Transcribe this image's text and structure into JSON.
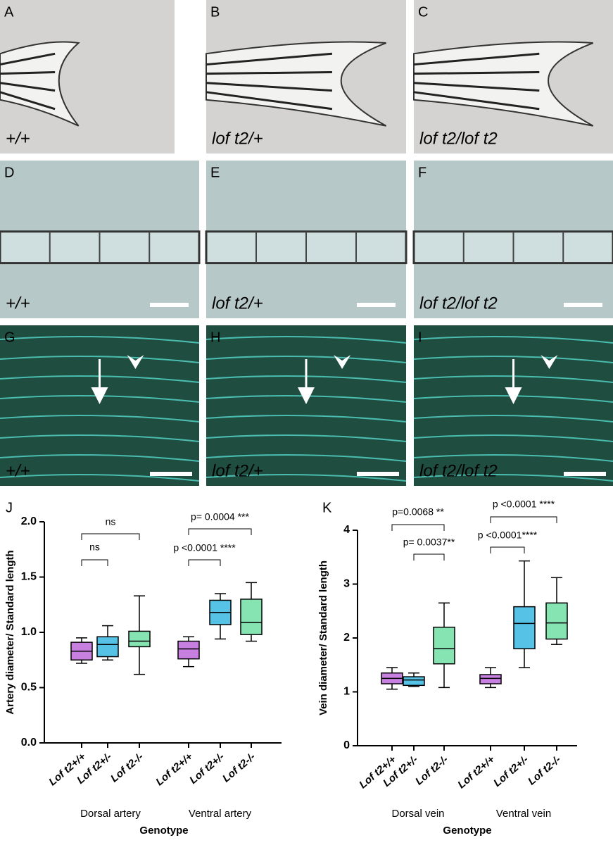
{
  "panels": [
    {
      "letter": "A",
      "genotype": "+/+"
    },
    {
      "letter": "B",
      "genotype": "lof t2/+"
    },
    {
      "letter": "C",
      "genotype": "lof t2/lof t2"
    },
    {
      "letter": "D",
      "genotype": "+/+"
    },
    {
      "letter": "E",
      "genotype": "lof t2/+"
    },
    {
      "letter": "F",
      "genotype": "lof t2/lof t2"
    },
    {
      "letter": "G",
      "genotype": "+/+"
    },
    {
      "letter": "H",
      "genotype": "lof t2/+"
    },
    {
      "letter": "I",
      "genotype": "lof t2/lof t2"
    }
  ],
  "chart_data": [
    {
      "type": "box",
      "panel_label": "J",
      "ylabel": "Artery diameter/ Standard length",
      "xlabel": "Genotype",
      "groups": [
        "Dorsal artery",
        "Ventral artery"
      ],
      "categories": [
        "Lof t2+/+",
        "Lof t2+/-",
        "Lof t2-/-",
        "Lof t2+/+",
        "Lof t2+/-",
        "Lof t2-/-"
      ],
      "colors": [
        "#c77fe0",
        "#56c2e6",
        "#86e3b2",
        "#c77fe0",
        "#56c2e6",
        "#86e3b2"
      ],
      "boxes": [
        {
          "min": 0.72,
          "q1": 0.75,
          "median": 0.83,
          "q3": 0.91,
          "max": 0.95
        },
        {
          "min": 0.75,
          "q1": 0.78,
          "median": 0.89,
          "q3": 0.96,
          "max": 1.06
        },
        {
          "min": 0.62,
          "q1": 0.87,
          "median": 0.92,
          "q3": 1.01,
          "max": 1.33
        },
        {
          "min": 0.69,
          "q1": 0.76,
          "median": 0.85,
          "q3": 0.92,
          "max": 0.96
        },
        {
          "min": 0.94,
          "q1": 1.07,
          "median": 1.18,
          "q3": 1.29,
          "max": 1.35
        },
        {
          "min": 0.92,
          "q1": 0.98,
          "median": 1.09,
          "q3": 1.3,
          "max": 1.45
        }
      ],
      "ylim": [
        0,
        2
      ],
      "yticks": [
        {
          "value": 0,
          "label": "0.0"
        },
        0.5,
        {
          "value": 1,
          "label": "1.0"
        },
        1.5,
        {
          "value": 2,
          "label": "2.0"
        }
      ],
      "annotations": [
        "ns",
        "ns",
        "p= 0.0004 ***",
        "p <0.0001 ****"
      ]
    },
    {
      "type": "box",
      "panel_label": "K",
      "ylabel": "Vein diameter/ Standard length",
      "xlabel": "Genotype",
      "groups": [
        "Dorsal vein",
        "Ventral vein"
      ],
      "categories": [
        "Lof t2+/+",
        "Lof t2+/-",
        "Lof t2-/-",
        "Lof t2+/+",
        "Lof t2+/-",
        "Lof t2-/-"
      ],
      "colors": [
        "#c77fe0",
        "#56c2e6",
        "#86e3b2",
        "#c77fe0",
        "#56c2e6",
        "#86e3b2"
      ],
      "boxes": [
        {
          "min": 1.05,
          "q1": 1.15,
          "median": 1.25,
          "q3": 1.35,
          "max": 1.45
        },
        {
          "min": 1.1,
          "q1": 1.12,
          "median": 1.22,
          "q3": 1.28,
          "max": 1.35
        },
        {
          "min": 1.08,
          "q1": 1.52,
          "median": 1.8,
          "q3": 2.2,
          "max": 2.65
        },
        {
          "min": 1.08,
          "q1": 1.15,
          "median": 1.25,
          "q3": 1.32,
          "max": 1.45
        },
        {
          "min": 1.45,
          "q1": 1.8,
          "median": 2.27,
          "q3": 2.58,
          "max": 3.43
        },
        {
          "min": 1.88,
          "q1": 1.98,
          "median": 2.28,
          "q3": 2.65,
          "max": 3.12
        }
      ],
      "ylim": [
        0,
        4
      ],
      "yticks": [
        0,
        1,
        2,
        3,
        4
      ],
      "annotations": [
        "p=0.0068 **",
        "p= 0.0037**",
        "p <0.0001 ****",
        "p <0.0001****"
      ]
    }
  ]
}
